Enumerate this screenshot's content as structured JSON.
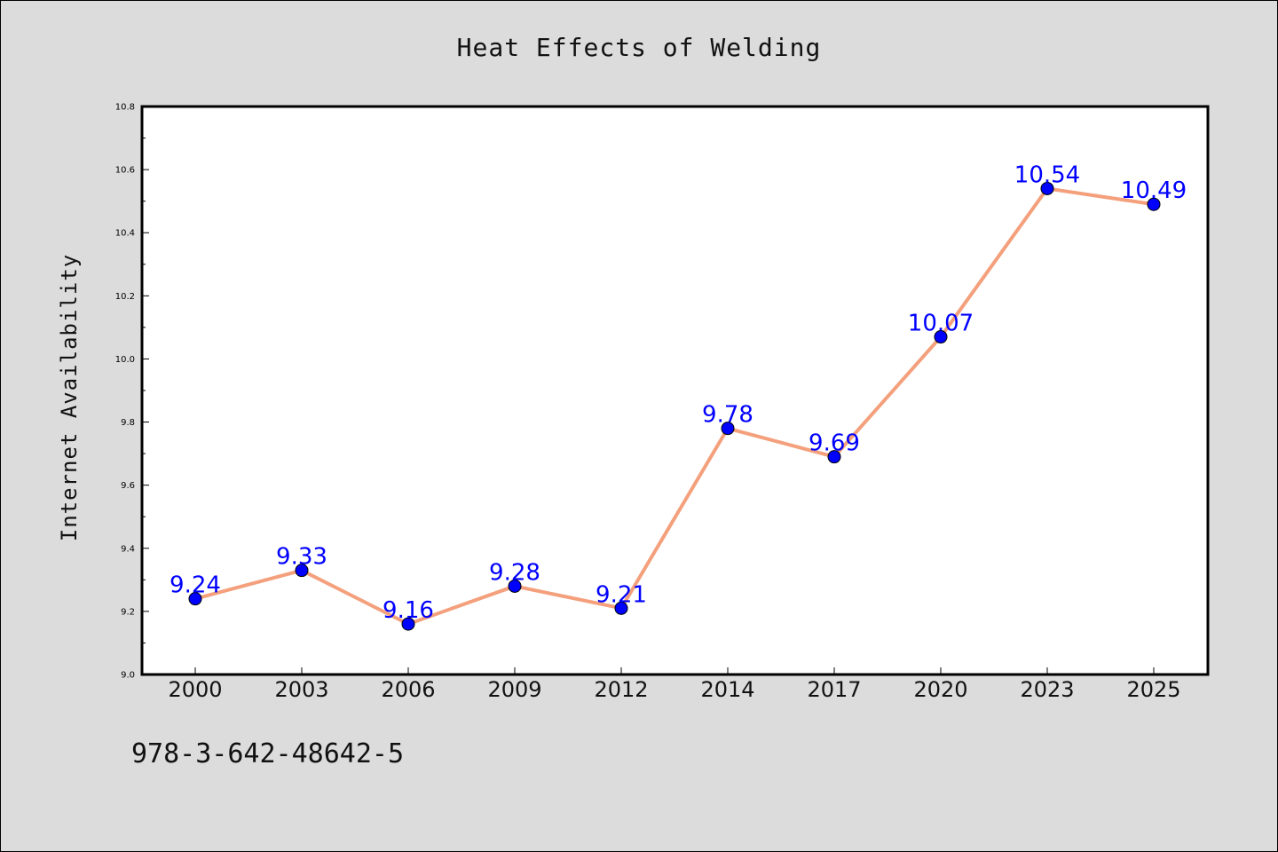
{
  "chart_data": {
    "type": "line",
    "title": "Heat Effects of Welding",
    "xlabel": "",
    "ylabel": "Internet Availability",
    "categories": [
      "2000",
      "2003",
      "2006",
      "2009",
      "2012",
      "2014",
      "2017",
      "2020",
      "2023",
      "2025"
    ],
    "series": [
      {
        "values": [
          9.24,
          9.33,
          9.16,
          9.28,
          9.21,
          9.78,
          9.69,
          10.07,
          10.54,
          10.49
        ],
        "labels": [
          "9.24",
          "9.33",
          "9.16",
          "9.28",
          "9.21",
          "9.78",
          "9.69",
          "10.07",
          "10.54",
          "10.49"
        ],
        "line_color": "#f4a07c",
        "marker_color": "#0000ff",
        "label_color": "#0000ff"
      }
    ],
    "ylim": [
      9.0,
      10.8
    ],
    "yticks": [
      "9.0",
      "9.2",
      "9.4",
      "9.6",
      "9.8",
      "10.0",
      "10.2",
      "10.4",
      "10.6",
      "10.8"
    ],
    "grid": false,
    "legend": "none"
  },
  "footnote": "978-3-642-48642-5",
  "colors": {
    "background": "#dcdcdc",
    "plot_background": "#ffffff"
  }
}
